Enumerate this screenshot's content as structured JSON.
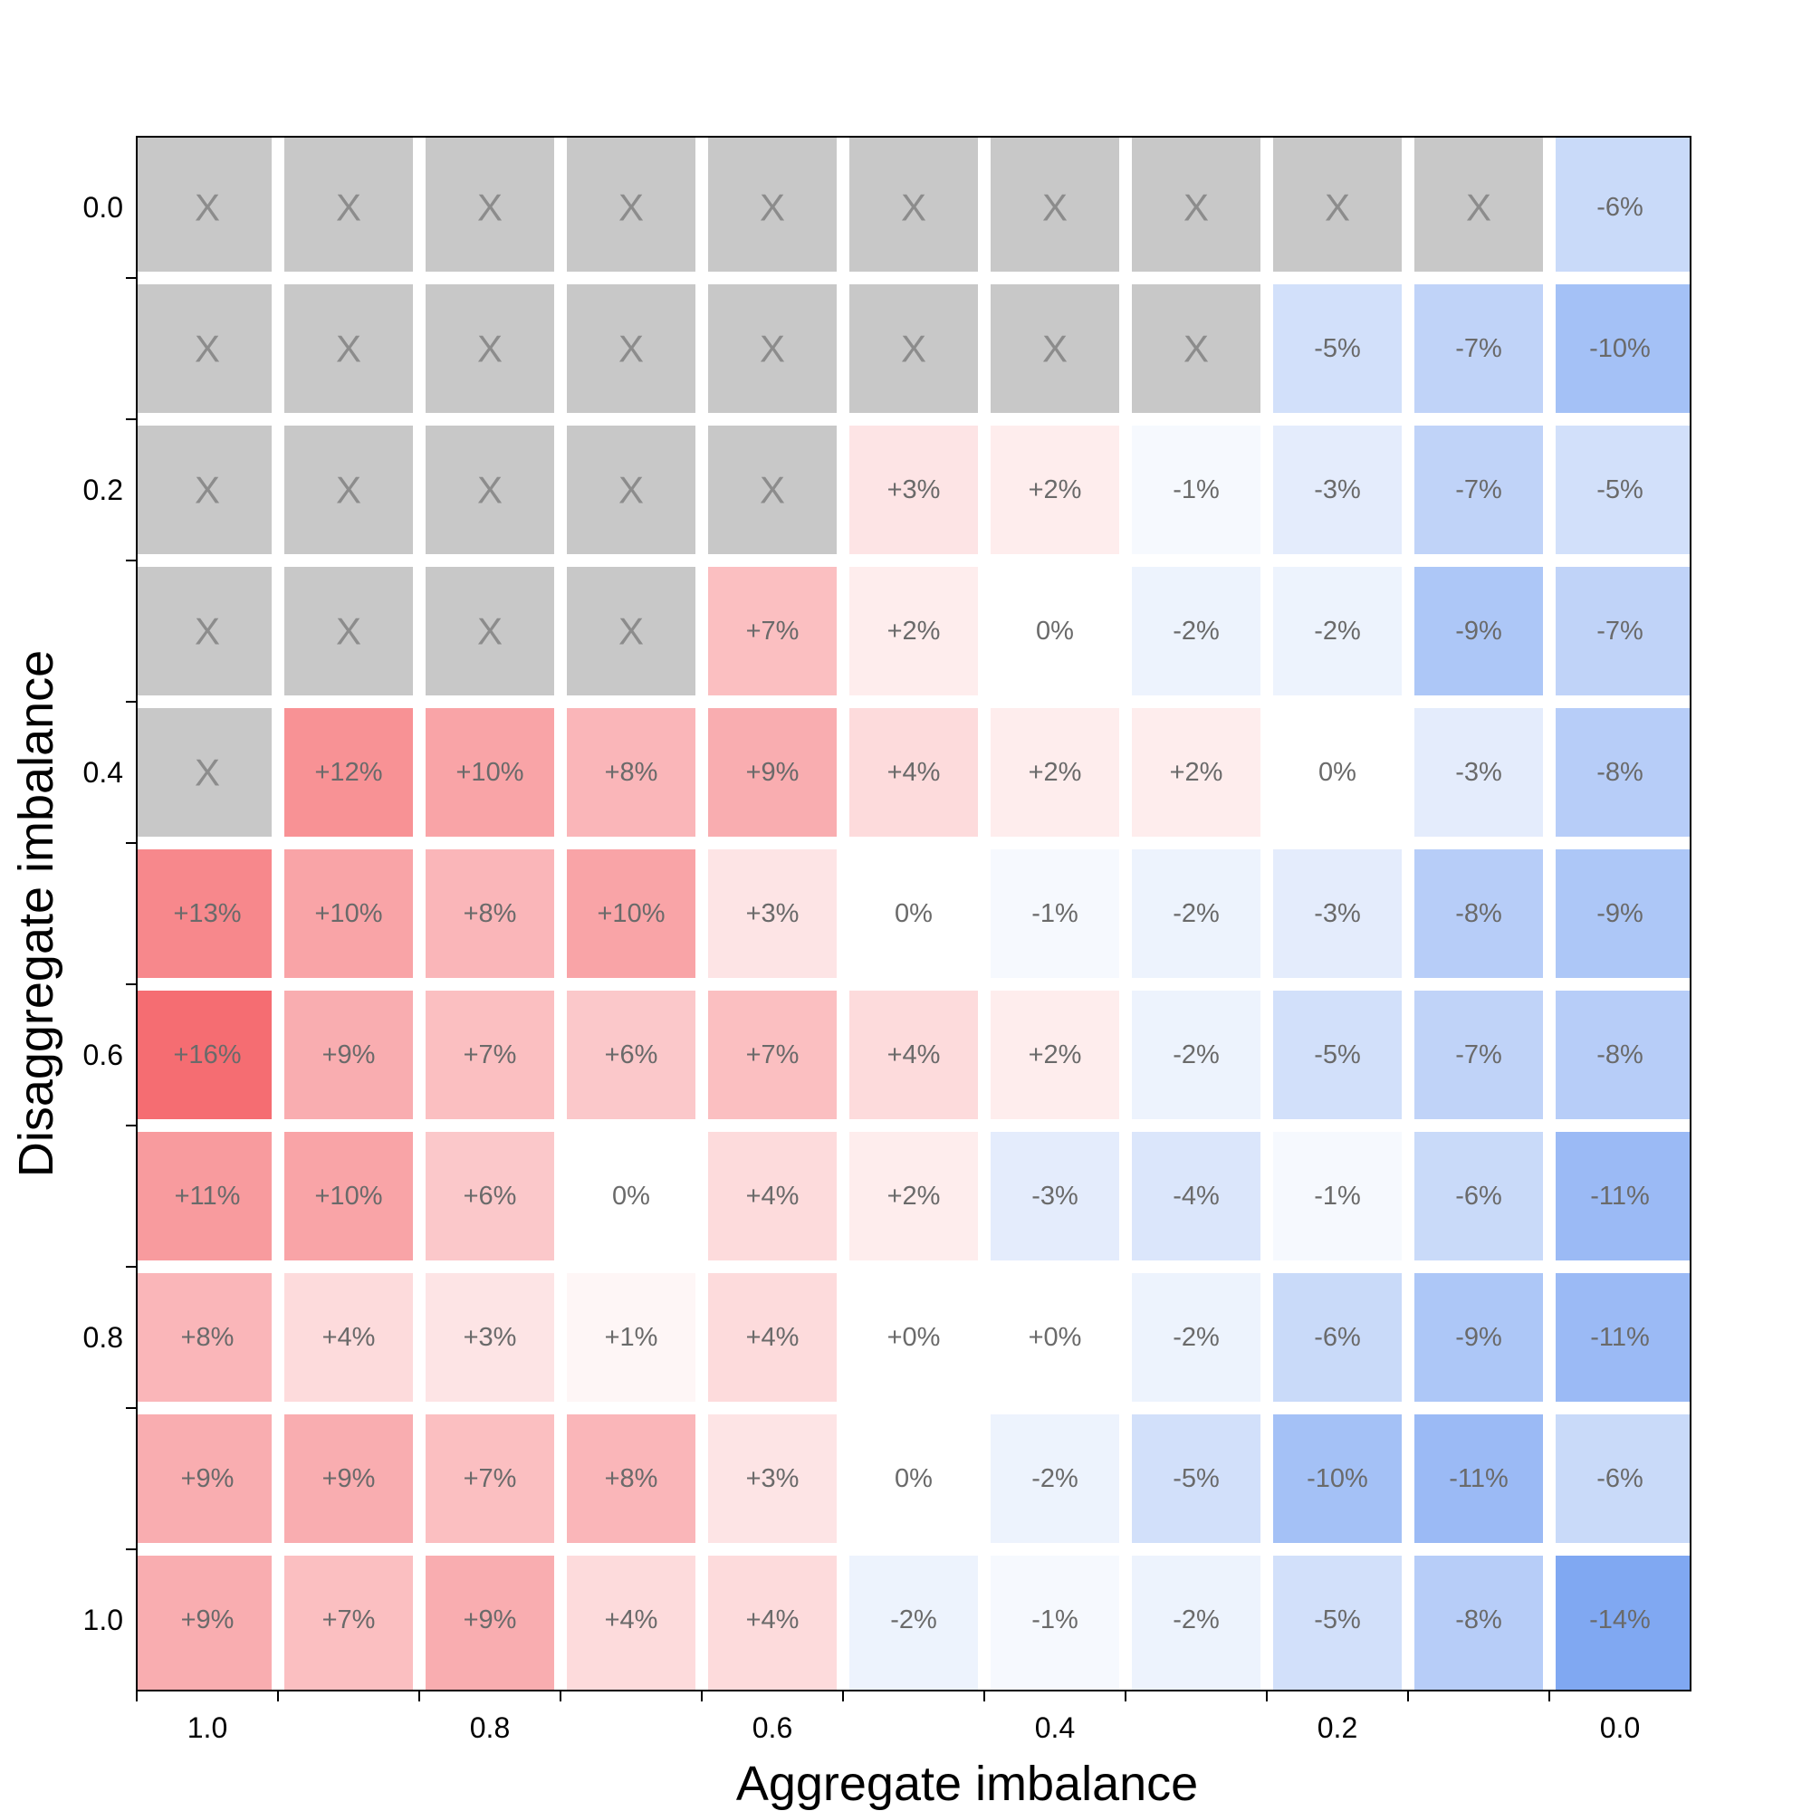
{
  "chart_data": {
    "type": "heatmap",
    "title": "",
    "xlabel": "Aggregate imbalance",
    "ylabel": "Disaggregate imbalance",
    "x_values": [
      1.0,
      0.9,
      0.8,
      0.7,
      0.6,
      0.5,
      0.4,
      0.3,
      0.2,
      0.1,
      0.0
    ],
    "y_values": [
      0.0,
      0.1,
      0.2,
      0.3,
      0.4,
      0.5,
      0.6,
      0.7,
      0.8,
      0.9,
      1.0
    ],
    "x_tick_labels": [
      "1.0",
      "",
      "0.8",
      "",
      "0.6",
      "",
      "0.4",
      "",
      "0.2",
      "",
      "0.0"
    ],
    "y_tick_labels": [
      "0.0",
      "",
      "0.2",
      "",
      "0.4",
      "",
      "0.6",
      "",
      "0.8",
      "",
      "1.0"
    ],
    "missing_marker": "X",
    "cell_labels": [
      [
        "X",
        "X",
        "X",
        "X",
        "X",
        "X",
        "X",
        "X",
        "X",
        "X",
        "-6%"
      ],
      [
        "X",
        "X",
        "X",
        "X",
        "X",
        "X",
        "X",
        "X",
        "-5%",
        "-7%",
        "-10%"
      ],
      [
        "X",
        "X",
        "X",
        "X",
        "X",
        "+3%",
        "+2%",
        "-1%",
        "-3%",
        "-7%",
        "-5%"
      ],
      [
        "X",
        "X",
        "X",
        "X",
        "+7%",
        "+2%",
        "0%",
        "-2%",
        "-2%",
        "-9%",
        "-7%"
      ],
      [
        "X",
        "+12%",
        "+10%",
        "+8%",
        "+9%",
        "+4%",
        "+2%",
        "+2%",
        "0%",
        "-3%",
        "-8%"
      ],
      [
        "+13%",
        "+10%",
        "+8%",
        "+10%",
        "+3%",
        "0%",
        "-1%",
        "-2%",
        "-3%",
        "-8%",
        "-9%"
      ],
      [
        "+16%",
        "+9%",
        "+7%",
        "+6%",
        "+7%",
        "+4%",
        "+2%",
        "-2%",
        "-5%",
        "-7%",
        "-8%"
      ],
      [
        "+11%",
        "+10%",
        "+6%",
        "0%",
        "+4%",
        "+2%",
        "-3%",
        "-4%",
        "-1%",
        "-6%",
        "-11%"
      ],
      [
        "+8%",
        "+4%",
        "+3%",
        "+1%",
        "+4%",
        "+0%",
        "+0%",
        "-2%",
        "-6%",
        "-9%",
        "-11%"
      ],
      [
        "+9%",
        "+9%",
        "+7%",
        "+8%",
        "+3%",
        "0%",
        "-2%",
        "-5%",
        "-10%",
        "-11%",
        "-6%"
      ],
      [
        "+9%",
        "+7%",
        "+9%",
        "+4%",
        "+4%",
        "-2%",
        "-1%",
        "-2%",
        "-5%",
        "-8%",
        "-14%"
      ]
    ],
    "values": [
      [
        null,
        null,
        null,
        null,
        null,
        null,
        null,
        null,
        null,
        null,
        -6
      ],
      [
        null,
        null,
        null,
        null,
        null,
        null,
        null,
        null,
        -5,
        -7,
        -10
      ],
      [
        null,
        null,
        null,
        null,
        null,
        3,
        2,
        -1,
        -3,
        -7,
        -5
      ],
      [
        null,
        null,
        null,
        null,
        7,
        2,
        0,
        -2,
        -2,
        -9,
        -7
      ],
      [
        null,
        12,
        10,
        8,
        9,
        4,
        2,
        2,
        0,
        -3,
        -8
      ],
      [
        13,
        10,
        8,
        10,
        3,
        0,
        -1,
        -2,
        -3,
        -8,
        -9
      ],
      [
        16,
        9,
        7,
        6,
        7,
        4,
        2,
        -2,
        -5,
        -7,
        -8
      ],
      [
        11,
        10,
        6,
        0,
        4,
        2,
        -3,
        -4,
        -1,
        -6,
        -11
      ],
      [
        8,
        4,
        3,
        1,
        4,
        0,
        0,
        -2,
        -6,
        -9,
        -11
      ],
      [
        9,
        9,
        7,
        8,
        3,
        0,
        -2,
        -5,
        -10,
        -11,
        -6
      ],
      [
        9,
        7,
        9,
        4,
        4,
        -2,
        -1,
        -2,
        -5,
        -8,
        -14
      ]
    ],
    "color_scale": {
      "min": -16,
      "max": 16,
      "negative": "#6e9bf0",
      "neutral": "#ffffff",
      "positive": "#f56d72",
      "missing": "#c8c8c8"
    },
    "grid": false,
    "legend": "none"
  }
}
